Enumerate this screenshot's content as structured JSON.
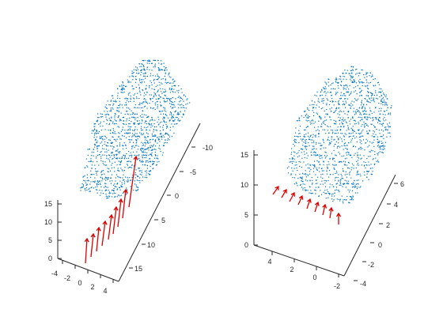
{
  "chart_data": [
    {
      "type": "scatter3d",
      "title": "",
      "series": [
        {
          "name": "",
          "kind": "point-cloud",
          "color": "#0072BD"
        },
        {
          "name": "",
          "kind": "camera-poses",
          "color": "#e00000",
          "count": 9
        }
      ],
      "axes": {
        "z": {
          "ticks": [
            "0",
            "5",
            "10",
            "15"
          ],
          "range": [
            0,
            16
          ]
        },
        "x": {
          "ticks": [
            "-4",
            "-2",
            "0",
            "2",
            "4"
          ],
          "range": [
            -4,
            4
          ]
        },
        "y": {
          "ticks": [
            "-10",
            "-5",
            "0",
            "5",
            "10",
            "15"
          ],
          "range": [
            -12,
            17
          ]
        }
      },
      "grid": false,
      "legend": "none"
    },
    {
      "type": "scatter3d",
      "title": "",
      "series": [
        {
          "name": "",
          "kind": "point-cloud",
          "color": "#0072BD"
        },
        {
          "name": "",
          "kind": "camera-poses",
          "color": "#e00000",
          "count": 9
        }
      ],
      "axes": {
        "z": {
          "ticks": [
            "0",
            "5",
            "10",
            "15"
          ],
          "range": [
            0,
            16
          ]
        },
        "x": {
          "ticks": [
            "4",
            "2",
            "0",
            "-2"
          ],
          "range": [
            -2.5,
            5
          ]
        },
        "y": {
          "ticks": [
            "-4",
            "-2",
            "0",
            "2",
            "4",
            "6"
          ],
          "range": [
            -4,
            7
          ]
        }
      },
      "grid": false,
      "legend": "none"
    }
  ]
}
